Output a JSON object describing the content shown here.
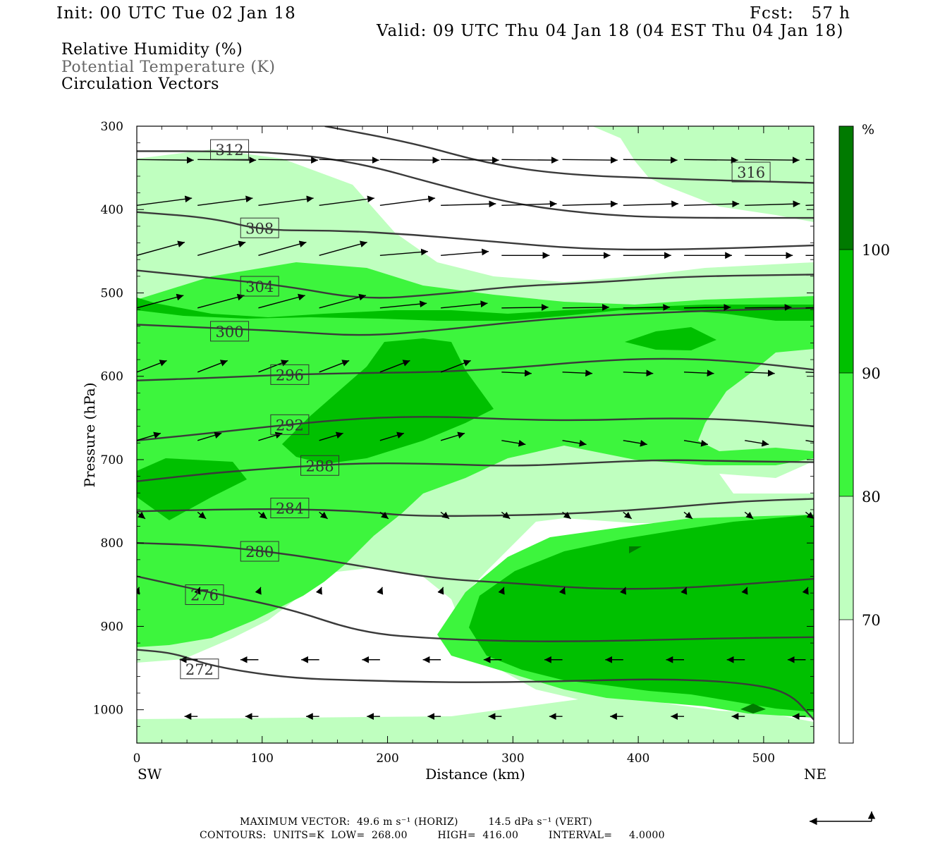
{
  "header": {
    "init": "Init: 00 UTC Tue 02 Jan 18",
    "fcst": "Fcst:   57 h",
    "valid": "Valid: 09 UTC Thu 04 Jan 18 (04 EST Thu 04 Jan 18)"
  },
  "legend": {
    "rh": "Relative Humidity (%)",
    "theta": "Potential Temperature (K)",
    "vectors": "Circulation Vectors"
  },
  "footer": {
    "max_vector": "MAXIMUM VECTOR:  49.6 m s⁻¹ (HORIZ)         14.5 dPa s⁻¹ (VERT)",
    "contours": "CONTOURS:  UNITS=K  LOW=  268.00         HIGH=  416.00         INTERVAL=     4.0000"
  },
  "colors": {
    "rh_70_80": "#bfffbf",
    "rh_80_90": "#3df53d",
    "rh_90_100": "#00c000",
    "rh_100": "#007a00",
    "contour": "#3a3a3a"
  },
  "chart_data": {
    "type": "cross-section",
    "xlabel": "Distance (km)",
    "ylabel": "Pressure (hPa)",
    "xlim": [
      0,
      540
    ],
    "ylim": [
      1040,
      300
    ],
    "x_ticks": [
      0,
      100,
      200,
      300,
      400,
      500
    ],
    "y_ticks": [
      300,
      400,
      500,
      600,
      700,
      800,
      900,
      1000
    ],
    "x_end_labels": {
      "left": "SW",
      "right": "NE"
    },
    "colorbar": {
      "unit": "%",
      "levels": [
        70,
        80,
        90,
        100
      ]
    },
    "theta_contours": [
      {
        "label": "312",
        "label_at": [
          74,
          328
        ],
        "points": [
          [
            0,
            330
          ],
          [
            60,
            330
          ],
          [
            120,
            332
          ],
          [
            180,
            345
          ],
          [
            240,
            370
          ],
          [
            300,
            393
          ],
          [
            360,
            405
          ],
          [
            420,
            410
          ],
          [
            540,
            410
          ]
        ]
      },
      {
        "label": "316",
        "label_at": [
          490,
          355
        ],
        "points": [
          [
            150,
            300
          ],
          [
            220,
            320
          ],
          [
            280,
            345
          ],
          [
            340,
            358
          ],
          [
            420,
            363
          ],
          [
            540,
            368
          ]
        ]
      },
      {
        "label": "308",
        "label_at": [
          98,
          422
        ],
        "points": [
          [
            0,
            403
          ],
          [
            60,
            410
          ],
          [
            100,
            425
          ],
          [
            160,
            425
          ],
          [
            220,
            430
          ],
          [
            280,
            438
          ],
          [
            360,
            448
          ],
          [
            440,
            448
          ],
          [
            540,
            443
          ]
        ]
      },
      {
        "label": "304",
        "label_at": [
          98,
          492
        ],
        "points": [
          [
            0,
            473
          ],
          [
            60,
            482
          ],
          [
            120,
            492
          ],
          [
            180,
            508
          ],
          [
            240,
            502
          ],
          [
            300,
            492
          ],
          [
            360,
            488
          ],
          [
            440,
            480
          ],
          [
            540,
            478
          ]
        ]
      },
      {
        "label": "300",
        "label_at": [
          74,
          546
        ],
        "points": [
          [
            0,
            538
          ],
          [
            60,
            542
          ],
          [
            120,
            546
          ],
          [
            180,
            552
          ],
          [
            240,
            545
          ],
          [
            300,
            535
          ],
          [
            360,
            528
          ],
          [
            440,
            522
          ],
          [
            540,
            518
          ]
        ]
      },
      {
        "label": "296",
        "label_at": [
          122,
          598
        ],
        "points": [
          [
            0,
            605
          ],
          [
            60,
            602
          ],
          [
            120,
            598
          ],
          [
            180,
            596
          ],
          [
            240,
            595
          ],
          [
            300,
            590
          ],
          [
            360,
            582
          ],
          [
            420,
            578
          ],
          [
            480,
            582
          ],
          [
            540,
            592
          ]
        ]
      },
      {
        "label": "292",
        "label_at": [
          122,
          658
        ],
        "points": [
          [
            0,
            677
          ],
          [
            60,
            668
          ],
          [
            120,
            658
          ],
          [
            180,
            650
          ],
          [
            240,
            648
          ],
          [
            300,
            652
          ],
          [
            360,
            653
          ],
          [
            420,
            650
          ],
          [
            480,
            652
          ],
          [
            540,
            660
          ]
        ]
      },
      {
        "label": "288",
        "label_at": [
          146,
          707
        ],
        "points": [
          [
            0,
            726
          ],
          [
            60,
            716
          ],
          [
            120,
            709
          ],
          [
            180,
            704
          ],
          [
            240,
            705
          ],
          [
            300,
            708
          ],
          [
            360,
            704
          ],
          [
            420,
            700
          ],
          [
            480,
            702
          ],
          [
            540,
            703
          ]
        ]
      },
      {
        "label": "284",
        "label_at": [
          122,
          758
        ],
        "points": [
          [
            0,
            762
          ],
          [
            60,
            760
          ],
          [
            120,
            759
          ],
          [
            180,
            762
          ],
          [
            220,
            768
          ],
          [
            300,
            767
          ],
          [
            360,
            764
          ],
          [
            420,
            758
          ],
          [
            480,
            750
          ],
          [
            540,
            747
          ]
        ]
      },
      {
        "label": "280",
        "label_at": [
          98,
          810
        ],
        "points": [
          [
            0,
            800
          ],
          [
            60,
            803
          ],
          [
            120,
            813
          ],
          [
            180,
            828
          ],
          [
            240,
            843
          ],
          [
            300,
            848
          ],
          [
            360,
            855
          ],
          [
            420,
            855
          ],
          [
            480,
            850
          ],
          [
            540,
            843
          ]
        ]
      },
      {
        "label": "276",
        "label_at": [
          54,
          862
        ],
        "points": [
          [
            0,
            840
          ],
          [
            60,
            860
          ],
          [
            120,
            878
          ],
          [
            180,
            908
          ],
          [
            240,
            915
          ],
          [
            300,
            918
          ],
          [
            360,
            918
          ],
          [
            420,
            916
          ],
          [
            480,
            914
          ],
          [
            540,
            913
          ]
        ]
      },
      {
        "label": "272",
        "label_at": [
          50,
          951
        ],
        "points": [
          [
            0,
            928
          ],
          [
            30,
            932
          ],
          [
            60,
            948
          ],
          [
            120,
            962
          ],
          [
            180,
            965
          ],
          [
            240,
            967
          ],
          [
            300,
            967
          ],
          [
            360,
            965
          ],
          [
            420,
            963
          ],
          [
            480,
            967
          ],
          [
            520,
            978
          ],
          [
            540,
            1012
          ]
        ]
      }
    ],
    "vectors_note": "Circulation vectors on a regular grid; westerly above 500 hPa, weak easterly below 850 hPa"
  }
}
